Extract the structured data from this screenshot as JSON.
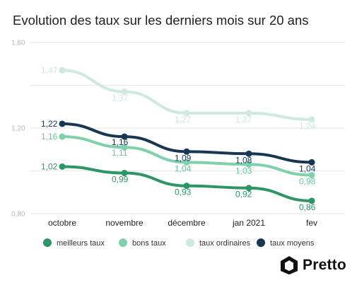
{
  "chart_data": {
    "type": "line",
    "title": "Evolution des taux sur les derniers mois sur 20 ans",
    "categories": [
      "octobre",
      "novembre",
      "décembre",
      "jan 2021",
      "fev"
    ],
    "ylim": [
      0.8,
      1.6
    ],
    "yticks": [
      "0,80",
      "1,20",
      "1,60"
    ],
    "grid": true,
    "legend_position": "bottom",
    "series": [
      {
        "name": "meilleurs taux",
        "color": "#2f9466",
        "values": [
          1.02,
          0.99,
          0.93,
          0.92,
          0.86
        ],
        "labels": [
          "1,02",
          "0,99",
          "0,93",
          "0,92",
          "0,86"
        ]
      },
      {
        "name": "bons taux",
        "color": "#7ed1aa",
        "values": [
          1.16,
          1.11,
          1.04,
          1.03,
          0.98
        ],
        "labels": [
          "1,16",
          "1,11",
          "1,04",
          "1,03",
          "0,98"
        ]
      },
      {
        "name": "taux ordinaires",
        "color": "#cfe9dc",
        "values": [
          1.47,
          1.37,
          1.27,
          1.27,
          1.24
        ],
        "labels": [
          "1,47",
          "1,37",
          "1,27",
          "1,27",
          "1,24"
        ]
      },
      {
        "name": "taux moyens",
        "color": "#163651",
        "values": [
          1.22,
          1.16,
          1.09,
          1.08,
          1.04
        ],
        "labels": [
          "1,22",
          "1,16",
          "1,09",
          "1,08",
          "1,04"
        ]
      }
    ]
  },
  "branding": {
    "logo_text": "Pretto",
    "logo_icon": "pretto-house-icon"
  }
}
